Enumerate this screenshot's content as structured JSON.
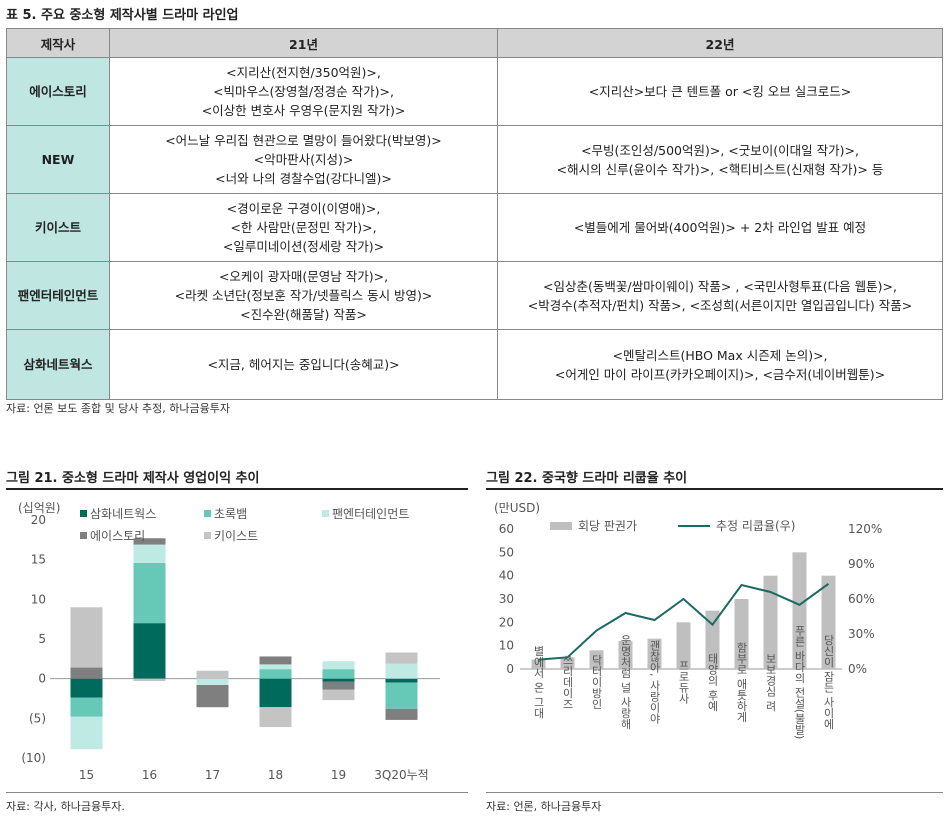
{
  "table": {
    "title": "표 5. 주요 중소형 제작사별 드라마 라인업",
    "headers": [
      "제작사",
      "21년",
      "22년"
    ],
    "rows": [
      {
        "company": "에이스토리",
        "y21": [
          "<지리산(전지현/350억원)>,",
          "<빅마우스(장영철/정경순 작가)>,",
          "<이상한 변호사 우영우(문지원 작가)>"
        ],
        "y22": [
          "<지리산>보다 큰 텐트폴 or <킹 오브 실크로드>"
        ]
      },
      {
        "company": "NEW",
        "y21": [
          "<어느날 우리집 현관으로 멸망이 들어왔다(박보영)>",
          "<악마판사(지성)>",
          "<너와 나의 경찰수업(강다니엘)>"
        ],
        "y22": [
          "<무빙(조인성/500억원)>, <굿보이(이대일 작가)>,",
          "<해시의 신루(윤이수 작가)>, <핵티비스트(신재형 작가)> 등"
        ]
      },
      {
        "company": "키이스트",
        "y21": [
          "<경이로운 구경이(이영애)>,",
          "<한 사람만(문정민 작가)>,",
          "<일루미네이션(정세랑 작가)>"
        ],
        "y22": [
          "<별들에게 물어봐(400억원)> + 2차 라인업 발표 예정"
        ]
      },
      {
        "company": "팬엔터테인먼트",
        "y21": [
          "<오케이 광자매(문영남 작가)>,",
          "<라켓 소년단(정보훈 작가/넷플릭스 동시 방영)>",
          "<진수완(해품달) 작품>"
        ],
        "y22": [
          "<임상춘(동백꽃/쌈마이웨이) 작품> , <국민사형투표(다음 웹툰)>,",
          "<박경수(추적자/펀치) 작품>, <조성희(서른이지만 열입곱입니다) 작품>"
        ]
      },
      {
        "company": "삼화네트웍스",
        "y21": [
          "<지금, 헤어지는 중입니다(송혜교)>"
        ],
        "y22": [
          "<멘탈리스트(HBO Max 시즌제 논의)>,",
          "<어게인 마이 라이프(카카오페이지)>, <금수저(네이버웹툰)>"
        ]
      }
    ],
    "source": "자료: 언론 보도 종합 및 당사 추정, 하나금융투자"
  },
  "fig21": {
    "title": "그림 21. 중소형 드라마 제작사 영업이익 추이",
    "source": "자료: 각사, 하나금융투자.",
    "chart_data": {
      "type": "bar",
      "stacked": true,
      "ylabel": "(십억원)",
      "ylim": [
        -10,
        20
      ],
      "yticks": [
        20,
        15,
        10,
        5,
        0,
        -5,
        -10
      ],
      "ytick_labels": [
        "20",
        "15",
        "10",
        "5",
        "0",
        "(5)",
        "(10)"
      ],
      "categories": [
        "15",
        "16",
        "17",
        "18",
        "19",
        "3Q20누적"
      ],
      "series": [
        {
          "name": "삼화네트웍스",
          "color": "#006b5c",
          "values": [
            -2.4,
            7.0,
            0,
            -3.6,
            -0.4,
            -0.5
          ]
        },
        {
          "name": "초록뱀",
          "color": "#66c9b8",
          "values": [
            -2.4,
            7.6,
            0,
            1.2,
            1.2,
            -3.3
          ]
        },
        {
          "name": "팬엔터테인먼트",
          "color": "#bfeae3",
          "values": [
            -4.1,
            2.3,
            -0.8,
            0.6,
            1.0,
            1.9
          ]
        },
        {
          "name": "에이스토리",
          "color": "#7f7f7f",
          "values": [
            1.4,
            0.8,
            -2.8,
            1.0,
            -1.0,
            -1.4
          ]
        },
        {
          "name": "키이스트",
          "color": "#c4c4c4",
          "values": [
            7.6,
            -0.3,
            1.0,
            -2.5,
            -1.3,
            1.4
          ]
        }
      ]
    }
  },
  "fig22": {
    "title": "그림 22. 중국향 드라마 리쿱율 추이",
    "source": "자료: 언론, 하나금융투자",
    "chart_data": {
      "type": "bar",
      "ylabel": "(만USD)",
      "ylim": [
        0,
        60
      ],
      "y2lim": [
        0,
        120
      ],
      "yticks": [
        0,
        10,
        20,
        30,
        40,
        50,
        60
      ],
      "y2ticks": [
        "0%",
        "30%",
        "60%",
        "90%",
        "120%"
      ],
      "categories": [
        "별에서 온 그대",
        "쓰리데이즈",
        "닥터이방인",
        "운명처럼 널 사랑해",
        "괜찮아, 사랑이야",
        "프로듀사",
        "태양의 후예",
        "함부로 애틋하게",
        "보보경심 려",
        "푸른 바다의 전설(불발)",
        "당신이 잠든 사이에"
      ],
      "series": [
        {
          "name": "회당 판권가",
          "type": "bar",
          "color": "#bfbfbf",
          "values": [
            4,
            5,
            8,
            12,
            13,
            20,
            25,
            30,
            40,
            50,
            40
          ]
        },
        {
          "name": "추정 리쿱율(우)",
          "type": "line",
          "color": "#1a6b63",
          "values": [
            8,
            10,
            33,
            48,
            42,
            60,
            38,
            72,
            66,
            55,
            73
          ]
        }
      ]
    }
  }
}
